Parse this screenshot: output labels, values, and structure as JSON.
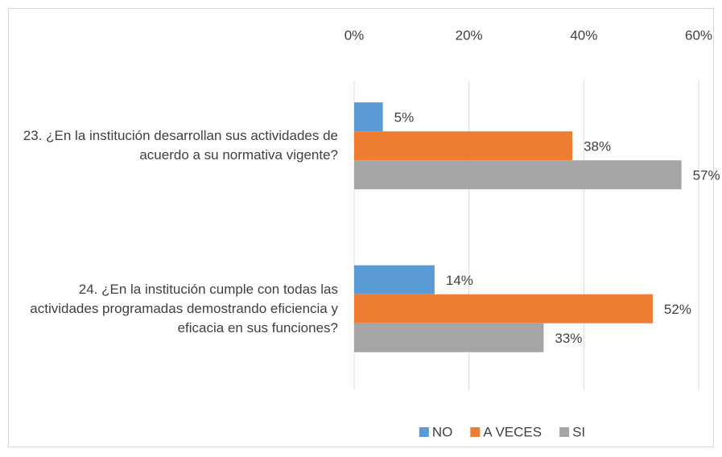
{
  "chart_data": {
    "type": "bar",
    "orientation": "horizontal",
    "categories": [
      "23. ¿En la institución desarrollan sus actividades de acuerdo a su normativa vigente?",
      "24. ¿En la institución cumple con todas las actividades programadas demostrando eficiencia y eficacia en sus funciones?"
    ],
    "series": [
      {
        "name": "NO",
        "color": "#5b9bd5",
        "values": [
          5,
          14
        ],
        "value_labels": [
          "5%",
          "14%"
        ]
      },
      {
        "name": "A VECES",
        "color": "#ed7d31",
        "values": [
          38,
          52
        ],
        "value_labels": [
          "38%",
          "52%"
        ]
      },
      {
        "name": "SI",
        "color": "#a5a5a5",
        "values": [
          57,
          33
        ],
        "value_labels": [
          "57%",
          "33%"
        ]
      }
    ],
    "xlim": [
      0,
      60
    ],
    "xticks": [
      {
        "value": 0,
        "label": "0%"
      },
      {
        "value": 20,
        "label": "20%"
      },
      {
        "value": 40,
        "label": "40%"
      },
      {
        "value": 60,
        "label": "60%"
      }
    ],
    "grid": true,
    "legend": "bottom"
  }
}
